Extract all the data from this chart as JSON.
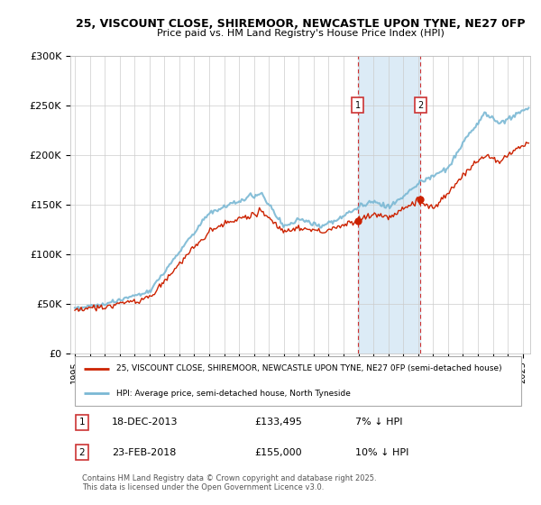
{
  "title_line1": "25, VISCOUNT CLOSE, SHIREMOOR, NEWCASTLE UPON TYNE, NE27 0FP",
  "title_line2": "Price paid vs. HM Land Registry's House Price Index (HPI)",
  "background_color": "#ffffff",
  "plot_bg_color": "#ffffff",
  "grid_color": "#cccccc",
  "hpi_line_color": "#7ab8d4",
  "price_line_color": "#cc2200",
  "shade_color": "#d6e8f5",
  "legend_label1": "25, VISCOUNT CLOSE, SHIREMOOR, NEWCASTLE UPON TYNE, NE27 0FP (semi-detached house)",
  "legend_label2": "HPI: Average price, semi-detached house, North Tyneside",
  "annotation1_date": "18-DEC-2013",
  "annotation1_price": "£133,495",
  "annotation1_hpi": "7% ↓ HPI",
  "annotation2_date": "23-FEB-2018",
  "annotation2_price": "£155,000",
  "annotation2_hpi": "10% ↓ HPI",
  "footer": "Contains HM Land Registry data © Crown copyright and database right 2025.\nThis data is licensed under the Open Government Licence v3.0.",
  "ylim": [
    0,
    300000
  ],
  "yticks": [
    0,
    50000,
    100000,
    150000,
    200000,
    250000,
    300000
  ],
  "ytick_labels": [
    "£0",
    "£50K",
    "£100K",
    "£150K",
    "£200K",
    "£250K",
    "£300K"
  ],
  "sale1_x": 2013.96,
  "sale1_y": 133495,
  "sale2_x": 2018.15,
  "sale2_y": 155000,
  "shade_x1": 2013.96,
  "shade_x2": 2018.15,
  "xmin": 1994.7,
  "xmax": 2025.5
}
